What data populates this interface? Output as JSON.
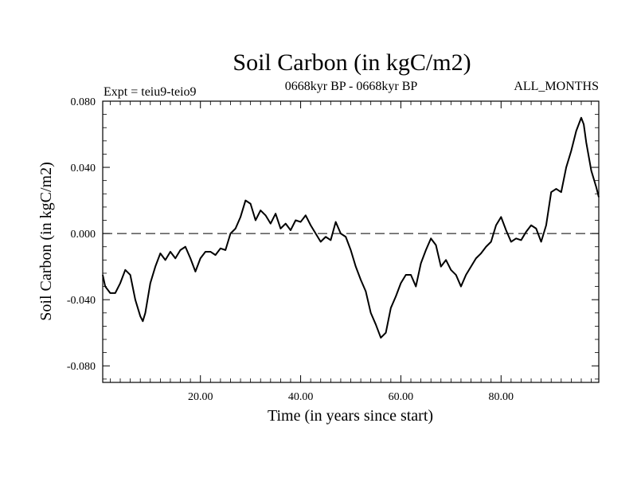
{
  "chart_data": {
    "type": "line",
    "title": "Soil Carbon (in kgC/m2)",
    "subtitle_left": "Expt = teiu9-teio9",
    "subtitle_center": "0668kyr BP - 0668kyr BP",
    "subtitle_right": "ALL_MONTHS",
    "xlabel": "Time (in years since start)",
    "ylabel": "Soil Carbon (in kgC/m2)",
    "xlim": [
      0.5,
      99.5
    ],
    "ylim": [
      -0.09,
      0.08
    ],
    "x_ticks": [
      20,
      40,
      60,
      80
    ],
    "x_tick_labels": [
      "20.00",
      "40.00",
      "60.00",
      "80.00"
    ],
    "y_ticks": [
      -0.08,
      -0.04,
      0.0,
      0.04,
      0.08
    ],
    "y_tick_labels": [
      "-0.080",
      "-0.040",
      "0.000",
      "0.040",
      "0.080"
    ],
    "zero_line": "dashed",
    "grid": false,
    "series": [
      {
        "color": "#000000",
        "x": [
          0.5,
          1,
          2,
          3,
          4,
          5,
          6,
          7,
          8,
          8.5,
          9,
          10,
          11,
          12,
          13,
          14,
          15,
          16,
          17,
          18,
          19,
          20,
          21,
          22,
          23,
          24,
          25,
          26,
          27,
          28,
          29,
          30,
          31,
          32,
          33,
          34,
          35,
          36,
          37,
          38,
          39,
          40,
          41,
          42,
          43,
          44,
          45,
          46,
          47,
          48,
          49,
          50,
          51,
          52,
          53,
          54,
          55,
          56,
          57,
          58,
          59,
          60,
          61,
          62,
          63,
          64,
          65,
          66,
          67,
          68,
          69,
          70,
          71,
          72,
          73,
          74,
          75,
          76,
          77,
          78,
          79,
          80,
          81,
          82,
          83,
          84,
          85,
          86,
          87,
          88,
          89,
          90,
          91,
          92,
          93,
          94,
          95,
          96,
          96.5,
          97,
          98,
          99,
          99.5
        ],
        "y": [
          -0.025,
          -0.032,
          -0.036,
          -0.036,
          -0.03,
          -0.022,
          -0.025,
          -0.04,
          -0.05,
          -0.053,
          -0.048,
          -0.03,
          -0.02,
          -0.012,
          -0.016,
          -0.011,
          -0.015,
          -0.01,
          -0.008,
          -0.015,
          -0.023,
          -0.015,
          -0.011,
          -0.011,
          -0.013,
          -0.009,
          -0.01,
          0.0,
          0.003,
          0.01,
          0.02,
          0.018,
          0.008,
          0.014,
          0.011,
          0.006,
          0.012,
          0.003,
          0.006,
          0.002,
          0.008,
          0.007,
          0.011,
          0.005,
          0.0,
          -0.005,
          -0.002,
          -0.004,
          0.007,
          0.0,
          -0.002,
          -0.01,
          -0.02,
          -0.028,
          -0.035,
          -0.048,
          -0.055,
          -0.063,
          -0.06,
          -0.045,
          -0.038,
          -0.03,
          -0.025,
          -0.025,
          -0.032,
          -0.018,
          -0.01,
          -0.003,
          -0.007,
          -0.02,
          -0.016,
          -0.022,
          -0.025,
          -0.032,
          -0.025,
          -0.02,
          -0.015,
          -0.012,
          -0.008,
          -0.005,
          0.005,
          0.01,
          0.002,
          -0.005,
          -0.003,
          -0.004,
          0.001,
          0.005,
          0.003,
          -0.005,
          0.005,
          0.025,
          0.027,
          0.025,
          0.04,
          0.05,
          0.062,
          0.07,
          0.066,
          0.055,
          0.038,
          0.028,
          0.022
        ]
      }
    ]
  }
}
